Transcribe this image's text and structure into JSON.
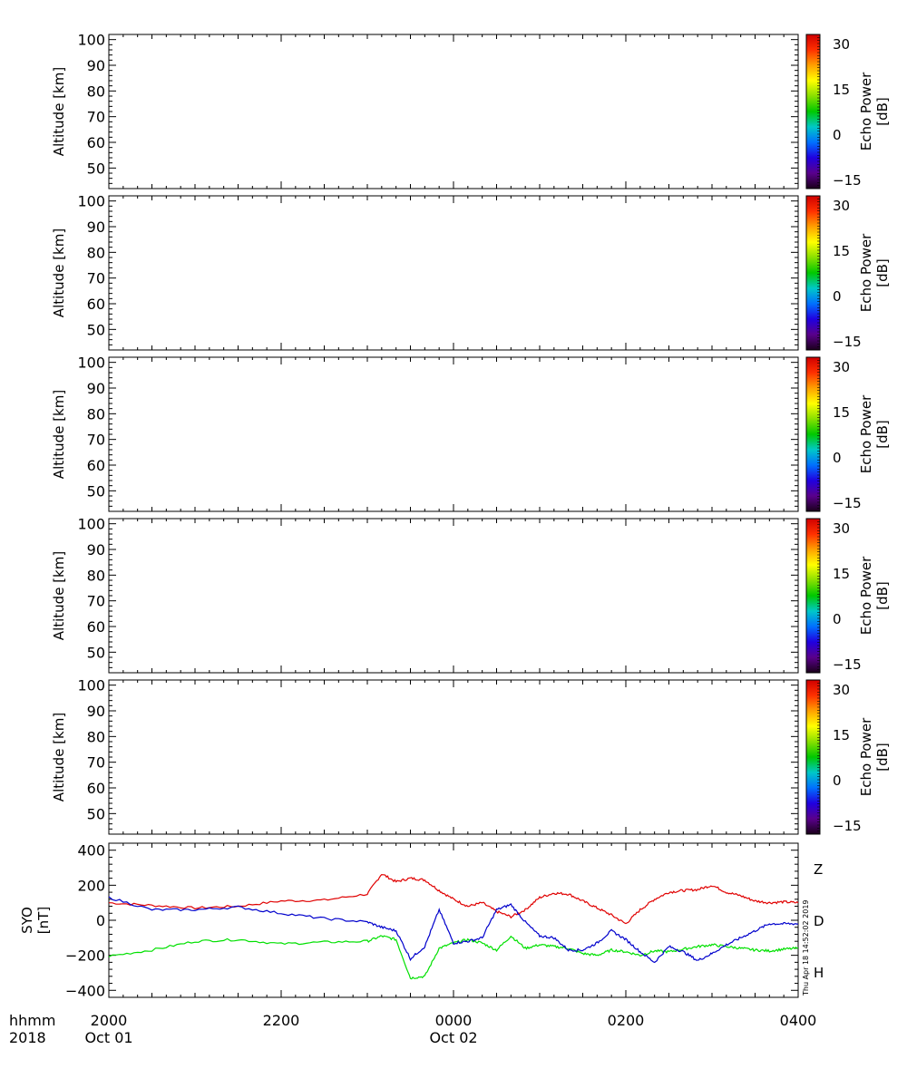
{
  "colorbar": {
    "colors": [
      "#1a001a",
      "#5a008c",
      "#2000e0",
      "#0070ff",
      "#00c8c8",
      "#00c800",
      "#88e000",
      "#ffff00",
      "#ffa000",
      "#ff3000",
      "#d00000"
    ]
  },
  "labels": {
    "yaxis": "Altitude [km]",
    "cb_line1": "Echo Power",
    "cb_line2": "[dB]",
    "mag_y1": "SYO",
    "mag_y2": "[nT]",
    "row_label1": "hhmm",
    "row_label2": "2018",
    "timestamp": "Thu Apr 18 14:52:02 2019"
  },
  "chart_data": [
    {
      "type": "heatmap",
      "ylabel": "Altitude [km]",
      "ylim": [
        42,
        102
      ],
      "yticks": [
        50,
        60,
        70,
        80,
        90,
        100
      ],
      "colorbar_label": "Echo Power [dB]",
      "colorbar_ticks": [
        30,
        15,
        0,
        -15
      ],
      "values": []
    },
    {
      "type": "heatmap",
      "ylabel": "Altitude [km]",
      "ylim": [
        42,
        102
      ],
      "yticks": [
        50,
        60,
        70,
        80,
        90,
        100
      ],
      "colorbar_label": "Echo Power [dB]",
      "colorbar_ticks": [
        30,
        15,
        0,
        -15
      ],
      "values": []
    },
    {
      "type": "heatmap",
      "ylabel": "Altitude [km]",
      "ylim": [
        42,
        102
      ],
      "yticks": [
        50,
        60,
        70,
        80,
        90,
        100
      ],
      "colorbar_label": "Echo Power [dB]",
      "colorbar_ticks": [
        30,
        15,
        0,
        -15
      ],
      "values": []
    },
    {
      "type": "heatmap",
      "ylabel": "Altitude [km]",
      "ylim": [
        42,
        102
      ],
      "yticks": [
        50,
        60,
        70,
        80,
        90,
        100
      ],
      "colorbar_label": "Echo Power [dB]",
      "colorbar_ticks": [
        30,
        15,
        0,
        -15
      ],
      "values": []
    },
    {
      "type": "heatmap",
      "ylabel": "Altitude [km]",
      "ylim": [
        42,
        102
      ],
      "yticks": [
        50,
        60,
        70,
        80,
        90,
        100
      ],
      "colorbar_label": "Echo Power [dB]",
      "colorbar_ticks": [
        30,
        15,
        0,
        -15
      ],
      "values": []
    },
    {
      "type": "line",
      "ylabel": "SYO [nT]",
      "ylim": [
        -440,
        440
      ],
      "yticks": [
        -400,
        -200,
        0,
        200,
        400
      ],
      "x": [
        2000,
        2030,
        2100,
        2130,
        2200,
        2230,
        2300,
        2310,
        2320,
        2330,
        2340,
        2350,
        0,
        10,
        20,
        30,
        40,
        50,
        100,
        110,
        120,
        130,
        140,
        150,
        200,
        210,
        220,
        230,
        240,
        250,
        300,
        310,
        320,
        330,
        340,
        350,
        400
      ],
      "x_unit": "hhmm UT, 2018 Oct 01 20:00 to Oct 02 04:00",
      "xlim": [
        2000,
        400
      ],
      "xtick_labels": [
        "2000",
        "2200",
        "0000",
        "0200",
        "0400"
      ],
      "xtick_date_labels": [
        "Oct 01",
        "",
        "Oct 02",
        "",
        ""
      ],
      "series": [
        {
          "name": "Z",
          "color": "#e00000",
          "values": [
            100,
            85,
            70,
            80,
            110,
            115,
            150,
            265,
            220,
            240,
            230,
            170,
            120,
            80,
            100,
            50,
            20,
            60,
            130,
            155,
            150,
            110,
            70,
            30,
            -20,
            60,
            120,
            160,
            170,
            175,
            200,
            160,
            140,
            110,
            100,
            105,
            100
          ]
        },
        {
          "name": "D",
          "color": "#00e000",
          "values": [
            -205,
            -170,
            -120,
            -110,
            -135,
            -125,
            -120,
            -90,
            -110,
            -330,
            -320,
            -160,
            -130,
            -110,
            -130,
            -170,
            -90,
            -160,
            -140,
            -150,
            -160,
            -190,
            -200,
            -170,
            -180,
            -200,
            -175,
            -180,
            -165,
            -150,
            -140,
            -150,
            -160,
            -170,
            -175,
            -165,
            -160
          ]
        },
        {
          "name": "H",
          "color": "#0000cc",
          "values": [
            130,
            60,
            60,
            75,
            40,
            10,
            -10,
            -40,
            -60,
            -220,
            -150,
            60,
            -130,
            -120,
            -100,
            60,
            90,
            -10,
            -90,
            -100,
            -170,
            -170,
            -130,
            -60,
            -110,
            -180,
            -240,
            -150,
            -180,
            -230,
            -190,
            -140,
            -100,
            -60,
            -20,
            -20,
            -20
          ]
        }
      ]
    }
  ]
}
